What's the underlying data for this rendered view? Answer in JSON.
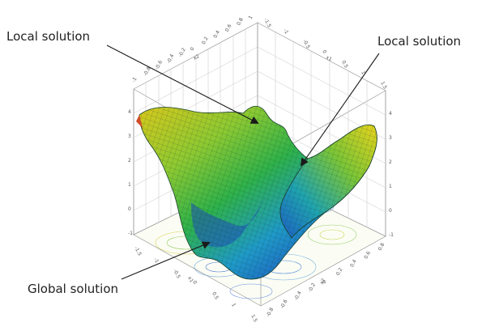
{
  "labels": {
    "local_left": "Local solution",
    "local_right": "Local solution",
    "global": "Global solution"
  },
  "axes": {
    "x1_name": "x1",
    "x2_name": "x2",
    "top_x2_ticks": [
      "-1",
      "-0.8",
      "-0.6",
      "-0.4",
      "-0.2",
      "0",
      "0.2",
      "0.4",
      "0.6",
      "0.8",
      "1"
    ],
    "top_x1_ticks": [
      "-1.5",
      "-1",
      "-0.5",
      "0",
      "0.5",
      "1",
      "1.5"
    ],
    "bottom_x1_ticks": [
      "-1.5",
      "-1",
      "-0.5",
      "0",
      "0.5",
      "1",
      "1.5"
    ],
    "bottom_x2_ticks": [
      "-0.8",
      "-0.6",
      "-0.4",
      "-0.2",
      "0",
      "0.2",
      "0.4",
      "0.6",
      "0.8"
    ],
    "z_ticks_left": [
      "4",
      "3",
      "2",
      "1",
      "0",
      "-1"
    ],
    "z_ticks_right": [
      "4",
      "3",
      "2",
      "1",
      "0",
      "-1"
    ]
  },
  "colors": {
    "surface_high": "#e8d21a",
    "surface_mid": "#2fb24a",
    "surface_low": "#1e64c8",
    "arrow": "#1a1a1a",
    "box_lines": "#9a9a9a"
  }
}
